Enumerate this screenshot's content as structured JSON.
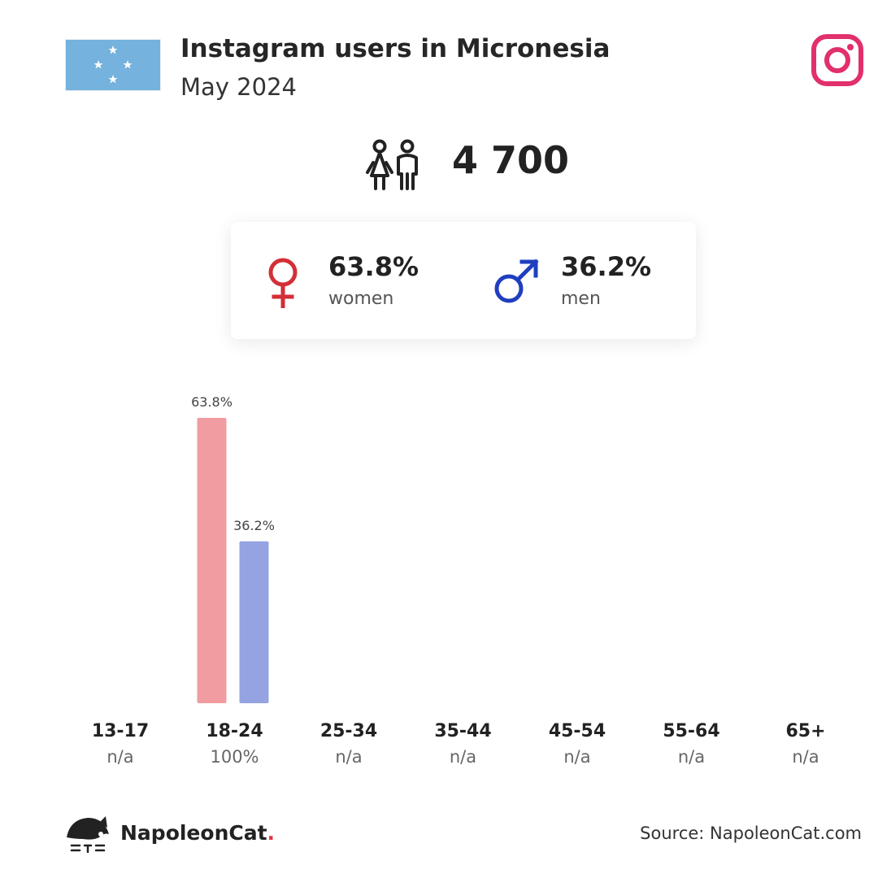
{
  "header": {
    "title": "Instagram users in Micronesia",
    "subtitle": "May 2024"
  },
  "total_users": "4 700",
  "gender": {
    "women": {
      "value": "63.8%",
      "label": "women",
      "color": "#d32f37"
    },
    "men": {
      "value": "36.2%",
      "label": "men",
      "color": "#1f3fbf"
    }
  },
  "icons": {
    "flag": "micronesia-flag",
    "platform": "instagram-icon",
    "users": "users-icon",
    "logo": "napoleoncat-logo"
  },
  "colors": {
    "women_bar": "#f09ca0",
    "men_bar": "#95a3e2",
    "instagram": "#e1306c",
    "flag_blue": "#75b2dd"
  },
  "chart_data": {
    "type": "bar",
    "categories": [
      "13-17",
      "18-24",
      "25-34",
      "35-44",
      "45-54",
      "55-64",
      "65+"
    ],
    "category_values": [
      "n/a",
      "100%",
      "n/a",
      "n/a",
      "n/a",
      "n/a",
      "n/a"
    ],
    "series": [
      {
        "name": "women",
        "values": [
          null,
          63.8,
          null,
          null,
          null,
          null,
          null
        ],
        "labels": [
          "",
          "63.8%",
          "",
          "",
          "",
          "",
          ""
        ]
      },
      {
        "name": "men",
        "values": [
          null,
          36.2,
          null,
          null,
          null,
          null,
          null
        ],
        "labels": [
          "",
          "36.2%",
          "",
          "",
          "",
          "",
          ""
        ]
      }
    ],
    "ylim": [
      0,
      63.8
    ]
  },
  "footer": {
    "brand_name": "NapoleonCat",
    "brand_dot": ".",
    "source": "Source: NapoleonCat.com"
  }
}
